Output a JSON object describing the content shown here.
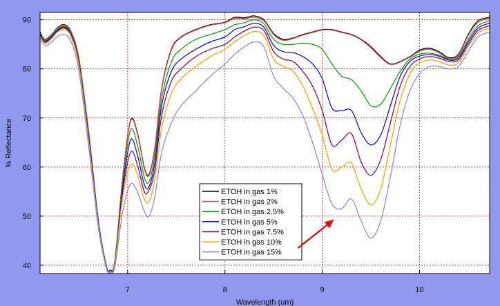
{
  "colors": {
    "background": "#8f99ef",
    "plot_background": "#ffffff",
    "grid": "#cc1010",
    "arrow": "#e01010"
  },
  "chart_data": {
    "type": "line",
    "xlabel": "Wavelength (um)",
    "ylabel": "% Reflectance",
    "xlim": [
      6.1,
      10.72
    ],
    "ylim": [
      38.3,
      91.5
    ],
    "x_ticks": [
      7,
      8,
      9,
      10
    ],
    "y_ticks": [
      40,
      50,
      60,
      70,
      80,
      90
    ],
    "grid": true,
    "legend_position": "bottom-center",
    "annotation": {
      "type": "arrow",
      "from": [
        8.75,
        43.5
      ],
      "to": [
        9.12,
        49.3
      ]
    },
    "series": [
      {
        "name": "ETOH in gas 1%",
        "color": "#000000",
        "x": [
          6.1,
          6.15,
          6.22,
          6.28,
          6.35,
          6.42,
          6.5,
          6.6,
          6.7,
          6.78,
          6.82,
          6.87,
          6.95,
          7.03,
          7.1,
          7.17,
          7.22,
          7.28,
          7.35,
          7.45,
          7.55,
          7.7,
          7.85,
          8.0,
          8.1,
          8.2,
          8.3,
          8.4,
          8.5,
          8.6,
          8.7,
          8.8,
          8.9,
          9.0,
          9.1,
          9.2,
          9.3,
          9.4,
          9.5,
          9.6,
          9.7,
          9.8,
          9.9,
          10.0,
          10.1,
          10.2,
          10.3,
          10.4,
          10.5,
          10.6,
          10.72
        ],
        "values": [
          87.5,
          86.0,
          87.0,
          88.4,
          89.0,
          87.5,
          82.0,
          67.0,
          49.0,
          40.0,
          39.0,
          41.0,
          58.0,
          69.5,
          67.0,
          60.0,
          58.5,
          64.0,
          76.0,
          84.0,
          86.5,
          88.0,
          89.0,
          89.5,
          90.5,
          90.4,
          90.8,
          90.0,
          87.2,
          86.0,
          86.3,
          87.0,
          87.5,
          88.0,
          88.0,
          87.5,
          87.0,
          86.0,
          84.5,
          82.5,
          81.0,
          81.5,
          82.5,
          83.8,
          84.2,
          83.5,
          82.3,
          83.0,
          87.0,
          89.8,
          90.5
        ]
      },
      {
        "name": "ETOH in gas 2%",
        "color": "#e04848",
        "x": [
          6.1,
          6.15,
          6.22,
          6.28,
          6.35,
          6.42,
          6.5,
          6.6,
          6.7,
          6.78,
          6.82,
          6.87,
          6.95,
          7.03,
          7.1,
          7.17,
          7.22,
          7.28,
          7.35,
          7.45,
          7.55,
          7.7,
          7.85,
          8.0,
          8.1,
          8.2,
          8.3,
          8.4,
          8.5,
          8.6,
          8.7,
          8.8,
          8.9,
          9.0,
          9.1,
          9.2,
          9.3,
          9.4,
          9.5,
          9.6,
          9.7,
          9.8,
          9.9,
          10.0,
          10.1,
          10.2,
          10.3,
          10.4,
          10.5,
          10.6,
          10.72
        ],
        "values": [
          87.3,
          85.9,
          86.9,
          88.3,
          88.9,
          87.4,
          81.9,
          67.0,
          49.0,
          40.0,
          39.0,
          41.0,
          58.0,
          69.3,
          66.8,
          59.8,
          58.3,
          63.8,
          75.8,
          83.8,
          86.4,
          87.9,
          88.9,
          89.4,
          90.3,
          90.2,
          90.5,
          89.8,
          87.0,
          85.8,
          86.2,
          86.9,
          87.4,
          87.9,
          87.9,
          87.4,
          86.9,
          85.9,
          84.3,
          82.3,
          80.9,
          81.4,
          82.4,
          83.6,
          84.0,
          83.3,
          82.1,
          82.8,
          86.8,
          89.5,
          90.3
        ]
      },
      {
        "name": "ETOH in gas 2.5%",
        "color": "#11a011",
        "x": [
          6.1,
          6.15,
          6.22,
          6.28,
          6.35,
          6.42,
          6.5,
          6.6,
          6.7,
          6.78,
          6.82,
          6.87,
          6.95,
          7.03,
          7.1,
          7.17,
          7.22,
          7.28,
          7.35,
          7.45,
          7.55,
          7.7,
          7.85,
          8.0,
          8.1,
          8.2,
          8.3,
          8.4,
          8.5,
          8.6,
          8.7,
          8.8,
          8.9,
          9.0,
          9.1,
          9.2,
          9.3,
          9.4,
          9.5,
          9.6,
          9.7,
          9.8,
          9.9,
          10.0,
          10.1,
          10.2,
          10.3,
          10.4,
          10.5,
          10.6,
          10.72
        ],
        "values": [
          87.3,
          85.8,
          86.8,
          88.1,
          88.7,
          87.2,
          81.5,
          66.5,
          48.8,
          40.0,
          39.0,
          40.8,
          57.0,
          67.5,
          64.5,
          58.0,
          57.0,
          62.5,
          74.0,
          81.5,
          84.0,
          86.0,
          87.0,
          88.0,
          89.0,
          89.4,
          90.0,
          89.2,
          86.0,
          85.0,
          85.0,
          85.2,
          85.0,
          84.0,
          81.0,
          78.5,
          77.8,
          75.5,
          72.5,
          72.8,
          76.0,
          79.5,
          82.0,
          83.0,
          83.2,
          82.8,
          82.0,
          82.5,
          86.0,
          88.8,
          89.8
        ]
      },
      {
        "name": "ETOH in gas 5%",
        "color": "#1111d0",
        "x": [
          6.1,
          6.15,
          6.22,
          6.28,
          6.35,
          6.42,
          6.5,
          6.6,
          6.7,
          6.78,
          6.82,
          6.87,
          6.95,
          7.03,
          7.1,
          7.17,
          7.22,
          7.28,
          7.35,
          7.45,
          7.55,
          7.7,
          7.85,
          8.0,
          8.1,
          8.2,
          8.3,
          8.4,
          8.5,
          8.6,
          8.7,
          8.8,
          8.9,
          9.0,
          9.1,
          9.2,
          9.3,
          9.4,
          9.5,
          9.6,
          9.7,
          9.8,
          9.9,
          10.0,
          10.1,
          10.2,
          10.3,
          10.4,
          10.5,
          10.6,
          10.72
        ],
        "values": [
          87.1,
          85.6,
          86.6,
          87.9,
          88.5,
          87.0,
          81.2,
          66.0,
          48.5,
          39.8,
          38.9,
          40.6,
          56.0,
          65.5,
          62.5,
          56.5,
          56.0,
          61.0,
          72.5,
          79.5,
          82.0,
          84.0,
          85.5,
          86.5,
          88.0,
          88.6,
          89.3,
          88.5,
          84.8,
          83.5,
          83.3,
          82.5,
          81.0,
          78.0,
          72.0,
          71.5,
          71.5,
          67.0,
          64.5,
          66.5,
          72.5,
          78.5,
          81.5,
          82.6,
          82.9,
          82.6,
          81.8,
          82.2,
          85.5,
          88.3,
          89.3
        ]
      },
      {
        "name": "ETOH in gas 7.5%",
        "color": "#8b0a5a",
        "x": [
          6.1,
          6.15,
          6.22,
          6.28,
          6.35,
          6.42,
          6.5,
          6.6,
          6.7,
          6.78,
          6.82,
          6.87,
          6.95,
          7.03,
          7.1,
          7.17,
          7.22,
          7.28,
          7.35,
          7.45,
          7.55,
          7.7,
          7.85,
          8.0,
          8.1,
          8.2,
          8.3,
          8.4,
          8.5,
          8.6,
          8.7,
          8.8,
          8.9,
          9.0,
          9.1,
          9.2,
          9.3,
          9.4,
          9.5,
          9.6,
          9.7,
          9.8,
          9.9,
          10.0,
          10.1,
          10.2,
          10.3,
          10.4,
          10.5,
          10.6,
          10.72
        ],
        "values": [
          86.9,
          85.4,
          86.4,
          87.7,
          88.3,
          86.8,
          81.0,
          65.5,
          48.3,
          39.7,
          38.8,
          40.4,
          55.0,
          63.0,
          60.5,
          55.0,
          55.3,
          59.5,
          70.5,
          77.5,
          80.0,
          82.5,
          84.0,
          85.0,
          86.5,
          87.7,
          88.5,
          87.8,
          83.5,
          82.0,
          81.5,
          79.5,
          76.5,
          71.5,
          64.5,
          65.5,
          66.8,
          61.0,
          58.3,
          61.5,
          69.0,
          76.5,
          80.5,
          82.0,
          82.5,
          82.2,
          81.5,
          81.8,
          85.0,
          87.8,
          88.8
        ]
      },
      {
        "name": "ETOH in gas 10%",
        "color": "#f5a800",
        "x": [
          6.1,
          6.15,
          6.22,
          6.28,
          6.35,
          6.42,
          6.5,
          6.6,
          6.7,
          6.78,
          6.82,
          6.87,
          6.95,
          7.03,
          7.1,
          7.17,
          7.22,
          7.28,
          7.35,
          7.45,
          7.55,
          7.7,
          7.85,
          8.0,
          8.1,
          8.2,
          8.3,
          8.4,
          8.5,
          8.6,
          8.7,
          8.8,
          8.9,
          9.0,
          9.1,
          9.2,
          9.3,
          9.4,
          9.5,
          9.6,
          9.7,
          9.8,
          9.9,
          10.0,
          10.1,
          10.2,
          10.3,
          10.4,
          10.5,
          10.6,
          10.72
        ],
        "values": [
          86.7,
          85.2,
          86.2,
          87.5,
          88.0,
          86.5,
          80.5,
          65.0,
          48.0,
          39.6,
          38.7,
          40.2,
          54.0,
          60.5,
          58.5,
          53.5,
          53.0,
          57.5,
          68.0,
          75.0,
          78.0,
          80.5,
          82.5,
          84.0,
          85.5,
          86.8,
          87.6,
          86.8,
          82.0,
          80.5,
          79.5,
          76.5,
          72.0,
          66.5,
          59.5,
          60.0,
          60.8,
          55.5,
          52.3,
          55.5,
          64.5,
          73.5,
          79.0,
          81.2,
          81.8,
          81.5,
          80.8,
          81.2,
          84.5,
          87.3,
          88.3
        ]
      },
      {
        "name": "ETOH in gas 15%",
        "color": "#8a8aee",
        "x": [
          6.1,
          6.15,
          6.22,
          6.28,
          6.35,
          6.42,
          6.5,
          6.6,
          6.7,
          6.78,
          6.82,
          6.87,
          6.95,
          7.03,
          7.1,
          7.17,
          7.22,
          7.28,
          7.35,
          7.45,
          7.55,
          7.7,
          7.85,
          8.0,
          8.1,
          8.2,
          8.3,
          8.4,
          8.5,
          8.6,
          8.7,
          8.8,
          8.9,
          9.0,
          9.1,
          9.2,
          9.3,
          9.4,
          9.5,
          9.6,
          9.7,
          9.8,
          9.9,
          10.0,
          10.1,
          10.2,
          10.3,
          10.4,
          10.5,
          10.6,
          10.72
        ],
        "values": [
          86.3,
          84.7,
          85.5,
          86.6,
          87.0,
          85.5,
          79.5,
          64.0,
          47.5,
          39.5,
          38.5,
          39.8,
          51.0,
          56.5,
          55.0,
          51.0,
          50.0,
          54.0,
          63.0,
          69.0,
          72.5,
          75.5,
          78.5,
          81.0,
          83.0,
          84.5,
          85.5,
          84.5,
          78.5,
          76.0,
          74.0,
          70.5,
          65.0,
          58.5,
          52.5,
          51.5,
          53.5,
          49.0,
          45.5,
          49.0,
          58.0,
          68.5,
          75.5,
          79.0,
          80.5,
          80.5,
          80.0,
          80.5,
          83.5,
          86.5,
          87.5
        ]
      }
    ]
  }
}
